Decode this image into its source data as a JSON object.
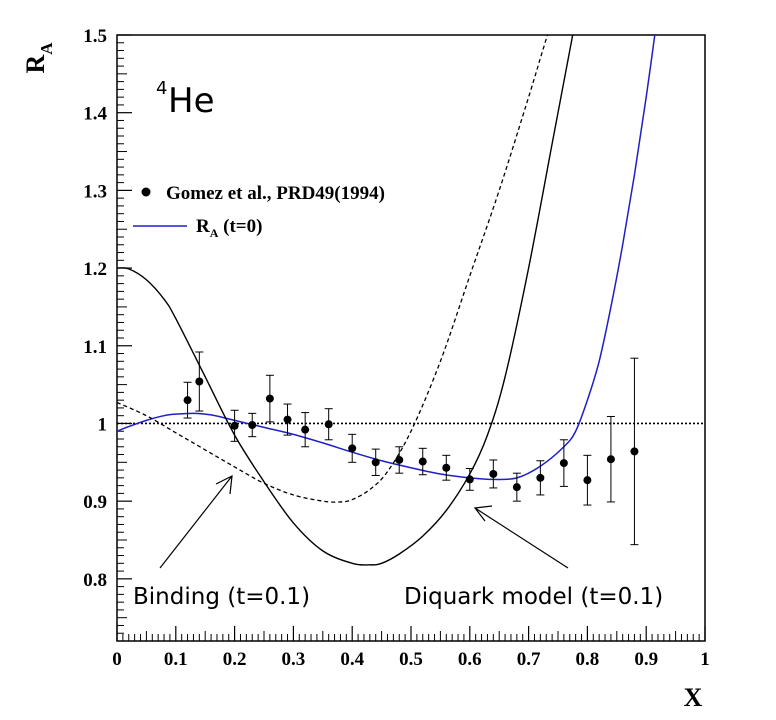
{
  "chart_data": {
    "type": "scatter",
    "title": "",
    "xlabel": "X",
    "ylabel_main": "R",
    "ylabel_sub": "A",
    "xlim": [
      0,
      1
    ],
    "ylim": [
      0.72,
      1.5
    ],
    "x_ticks": [
      "0",
      "0.1",
      "0.2",
      "0.3",
      "0.4",
      "0.5",
      "0.6",
      "0.7",
      "0.8",
      "0.9",
      "1"
    ],
    "y_ticks": [
      "0.8",
      "0.9",
      "1",
      "1.1",
      "1.2",
      "1.3",
      "1.4",
      "1.5"
    ],
    "grid": false,
    "legend_position": "upper-left",
    "nucleus_label": {
      "mass": "4",
      "symbol": "He"
    },
    "legend": {
      "data_label": "Gomez et al., PRD49(1994)",
      "line_label_main": "R",
      "line_label_sub": "A",
      "line_label_tail": " (t=0)"
    },
    "annotations": {
      "binding": "Binding (t=0.1)",
      "diquark": "Diquark model (t=0.1)"
    },
    "reference_line": {
      "y": 1.0,
      "style": "dotted"
    },
    "data_points": [
      {
        "x": 0.12,
        "y": 1.03,
        "err": 0.023
      },
      {
        "x": 0.14,
        "y": 1.054,
        "err": 0.038
      },
      {
        "x": 0.2,
        "y": 0.997,
        "err": 0.02
      },
      {
        "x": 0.23,
        "y": 0.998,
        "err": 0.015
      },
      {
        "x": 0.26,
        "y": 1.032,
        "err": 0.03
      },
      {
        "x": 0.29,
        "y": 1.005,
        "err": 0.02
      },
      {
        "x": 0.32,
        "y": 0.992,
        "err": 0.022
      },
      {
        "x": 0.36,
        "y": 0.999,
        "err": 0.02
      },
      {
        "x": 0.4,
        "y": 0.968,
        "err": 0.018
      },
      {
        "x": 0.44,
        "y": 0.95,
        "err": 0.017
      },
      {
        "x": 0.48,
        "y": 0.953,
        "err": 0.017
      },
      {
        "x": 0.52,
        "y": 0.951,
        "err": 0.017
      },
      {
        "x": 0.56,
        "y": 0.943,
        "err": 0.016
      },
      {
        "x": 0.6,
        "y": 0.928,
        "err": 0.014
      },
      {
        "x": 0.64,
        "y": 0.935,
        "err": 0.018
      },
      {
        "x": 0.68,
        "y": 0.918,
        "err": 0.018
      },
      {
        "x": 0.72,
        "y": 0.93,
        "err": 0.022
      },
      {
        "x": 0.76,
        "y": 0.949,
        "err": 0.03
      },
      {
        "x": 0.8,
        "y": 0.927,
        "err": 0.032
      },
      {
        "x": 0.84,
        "y": 0.954,
        "err": 0.055
      },
      {
        "x": 0.88,
        "y": 0.964,
        "err": 0.12
      }
    ],
    "series": [
      {
        "name": "R_A (t=0)",
        "color": "#1f1fc8",
        "style": "solid",
        "x": [
          0.0,
          0.02,
          0.05,
          0.08,
          0.1,
          0.13,
          0.16,
          0.2,
          0.25,
          0.3,
          0.35,
          0.4,
          0.45,
          0.5,
          0.55,
          0.6,
          0.64,
          0.68,
          0.72,
          0.76,
          0.78,
          0.8,
          0.82,
          0.84,
          0.86,
          0.88,
          0.9,
          0.92
        ],
        "y": [
          0.99,
          0.996,
          1.004,
          1.01,
          1.012,
          1.013,
          1.011,
          1.004,
          0.995,
          0.986,
          0.975,
          0.963,
          0.952,
          0.943,
          0.935,
          0.93,
          0.928,
          0.93,
          0.945,
          0.97,
          0.99,
          1.03,
          1.08,
          1.15,
          1.23,
          1.32,
          1.42,
          1.53
        ]
      },
      {
        "name": "Binding (t=0.1)",
        "color": "#000000",
        "style": "dashed",
        "x": [
          0.0,
          0.05,
          0.1,
          0.15,
          0.2,
          0.25,
          0.3,
          0.35,
          0.38,
          0.4,
          0.43,
          0.46,
          0.5,
          0.55,
          0.6,
          0.65,
          0.7,
          0.72,
          0.74
        ],
        "y": [
          1.027,
          1.01,
          0.988,
          0.966,
          0.944,
          0.923,
          0.908,
          0.9,
          0.899,
          0.902,
          0.915,
          0.938,
          0.99,
          1.08,
          1.19,
          1.3,
          1.42,
          1.47,
          1.52
        ]
      },
      {
        "name": "Diquark model (t=0.1)",
        "color": "#000000",
        "style": "solid",
        "x": [
          0.0,
          0.02,
          0.05,
          0.08,
          0.1,
          0.15,
          0.2,
          0.25,
          0.3,
          0.35,
          0.4,
          0.43,
          0.45,
          0.48,
          0.52,
          0.56,
          0.6,
          0.63,
          0.66,
          0.7,
          0.74,
          0.76,
          0.78
        ],
        "y": [
          1.2,
          1.199,
          1.185,
          1.16,
          1.135,
          1.06,
          0.985,
          0.925,
          0.872,
          0.836,
          0.82,
          0.818,
          0.82,
          0.832,
          0.855,
          0.888,
          0.935,
          0.985,
          1.06,
          1.2,
          1.36,
          1.44,
          1.52
        ]
      }
    ]
  }
}
